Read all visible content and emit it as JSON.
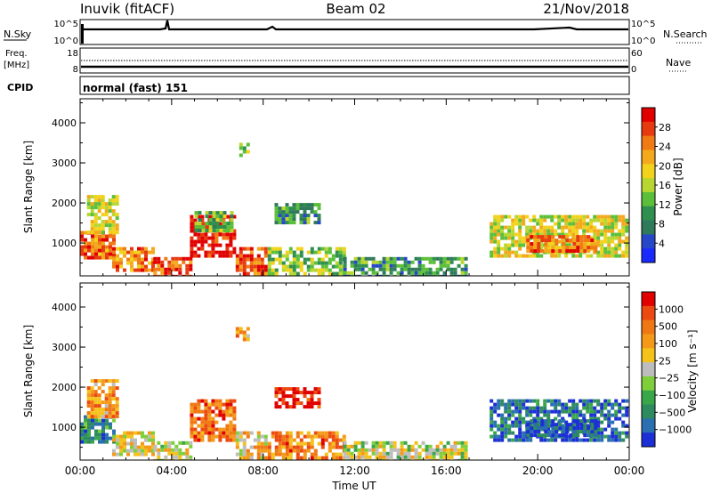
{
  "header": {
    "station": "Inuvik (fitACF)",
    "beam": "Beam 02",
    "date": "21/Nov/2018"
  },
  "strips": {
    "nsky_label": "N.Sky",
    "nsky_ticks": [
      "10^5",
      "10^0"
    ],
    "nsearch_label": "N.Search",
    "nsearch_ticks": [
      "10^5",
      "10^0"
    ],
    "freq_label_1": "Freq.",
    "freq_label_2": "[MHz]",
    "freq_ticks": [
      "18",
      "8"
    ],
    "nave_label": "Nave",
    "nave_ticks": [
      "60",
      "0"
    ],
    "cpid_label": "CPID",
    "cpid_value": "normal (fast) 151"
  },
  "chart_data": [
    {
      "type": "heatmap",
      "name": "power",
      "ylabel": "Slant Range [km]",
      "yticks": [
        1000,
        2000,
        3000,
        4000
      ],
      "ylim": [
        180,
        4600
      ],
      "xlim": [
        0,
        24
      ],
      "colorbar": {
        "label": "Power [dB]",
        "ticks": [
          "4",
          "8",
          "12",
          "16",
          "20",
          "24",
          "28"
        ],
        "colors": [
          "#1a2aff",
          "#2747c9",
          "#2f7a5a",
          "#2f8f4f",
          "#5bbf3a",
          "#b7d630",
          "#f2d21a",
          "#f4a81b",
          "#f07a14",
          "#e83a10",
          "#e00000"
        ]
      },
      "regions": [
        {
          "t0": 0.0,
          "t1": 1.5,
          "r0": 600,
          "r1": 1300,
          "level": 0.8
        },
        {
          "t0": 0.3,
          "t1": 1.6,
          "r0": 1300,
          "r1": 2200,
          "level": 0.55
        },
        {
          "t0": 1.4,
          "t1": 3.2,
          "r0": 300,
          "r1": 900,
          "level": 0.75
        },
        {
          "t0": 3.2,
          "t1": 4.8,
          "r0": 200,
          "r1": 650,
          "level": 0.85
        },
        {
          "t0": 4.8,
          "t1": 6.8,
          "r0": 700,
          "r1": 1700,
          "level": 0.95
        },
        {
          "t0": 5.0,
          "t1": 6.6,
          "r0": 1300,
          "r1": 1800,
          "level": 0.4
        },
        {
          "t0": 6.8,
          "t1": 8.2,
          "r0": 250,
          "r1": 900,
          "level": 0.85
        },
        {
          "t0": 8.2,
          "t1": 11.5,
          "r0": 250,
          "r1": 900,
          "level": 0.45
        },
        {
          "t0": 8.5,
          "t1": 10.5,
          "r0": 1500,
          "r1": 2000,
          "level": 0.3
        },
        {
          "t0": 6.8,
          "t1": 7.3,
          "r0": 3200,
          "r1": 3500,
          "level": 0.45
        },
        {
          "t0": 11.5,
          "t1": 16.8,
          "r0": 200,
          "r1": 650,
          "level": 0.3
        },
        {
          "t0": 17.9,
          "t1": 23.9,
          "r0": 650,
          "r1": 1700,
          "level": 0.55
        },
        {
          "t0": 19.5,
          "t1": 22.5,
          "r0": 800,
          "r1": 1200,
          "level": 0.8
        }
      ]
    },
    {
      "type": "heatmap",
      "name": "velocity",
      "ylabel": "Slant Range [km]",
      "yticks": [
        1000,
        2000,
        3000,
        4000
      ],
      "ylim": [
        180,
        4600
      ],
      "xlim": [
        0,
        24
      ],
      "xlabel": "Time UT",
      "xticks": [
        "00:00",
        "04:00",
        "08:00",
        "12:00",
        "16:00",
        "20:00",
        "00:00"
      ],
      "colorbar": {
        "label": "Velocity [m s⁻¹]",
        "ticks": [
          "1000",
          "500",
          "100",
          "25",
          "−25",
          "−100",
          "−500",
          "−1000"
        ],
        "colors": [
          "#1c2fd6",
          "#2a6fb0",
          "#2e8a5f",
          "#3aa64a",
          "#7fcf3a",
          "#bdbdbd",
          "#f5c21a",
          "#f49a18",
          "#f07814",
          "#ec4a10",
          "#e00000"
        ]
      },
      "regions": [
        {
          "t0": 0.0,
          "t1": 1.5,
          "r0": 600,
          "r1": 1300,
          "level": 0.25
        },
        {
          "t0": 0.3,
          "t1": 1.6,
          "r0": 1300,
          "r1": 2200,
          "level": 0.7
        },
        {
          "t0": 1.4,
          "t1": 3.2,
          "r0": 300,
          "r1": 900,
          "level": 0.55
        },
        {
          "t0": 3.2,
          "t1": 4.8,
          "r0": 200,
          "r1": 650,
          "level": 0.5
        },
        {
          "t0": 4.8,
          "t1": 6.8,
          "r0": 700,
          "r1": 1700,
          "level": 0.8
        },
        {
          "t0": 6.8,
          "t1": 8.2,
          "r0": 250,
          "r1": 900,
          "level": 0.6
        },
        {
          "t0": 8.2,
          "t1": 11.5,
          "r0": 250,
          "r1": 900,
          "level": 0.75
        },
        {
          "t0": 8.5,
          "t1": 10.5,
          "r0": 1500,
          "r1": 2000,
          "level": 0.95
        },
        {
          "t0": 6.8,
          "t1": 7.3,
          "r0": 3200,
          "r1": 3500,
          "level": 0.7
        },
        {
          "t0": 11.5,
          "t1": 16.8,
          "r0": 200,
          "r1": 650,
          "level": 0.5
        },
        {
          "t0": 17.9,
          "t1": 23.9,
          "r0": 650,
          "r1": 1700,
          "level": 0.15
        },
        {
          "t0": 19.5,
          "t1": 22.5,
          "r0": 800,
          "r1": 1200,
          "level": 0.1
        }
      ]
    }
  ]
}
